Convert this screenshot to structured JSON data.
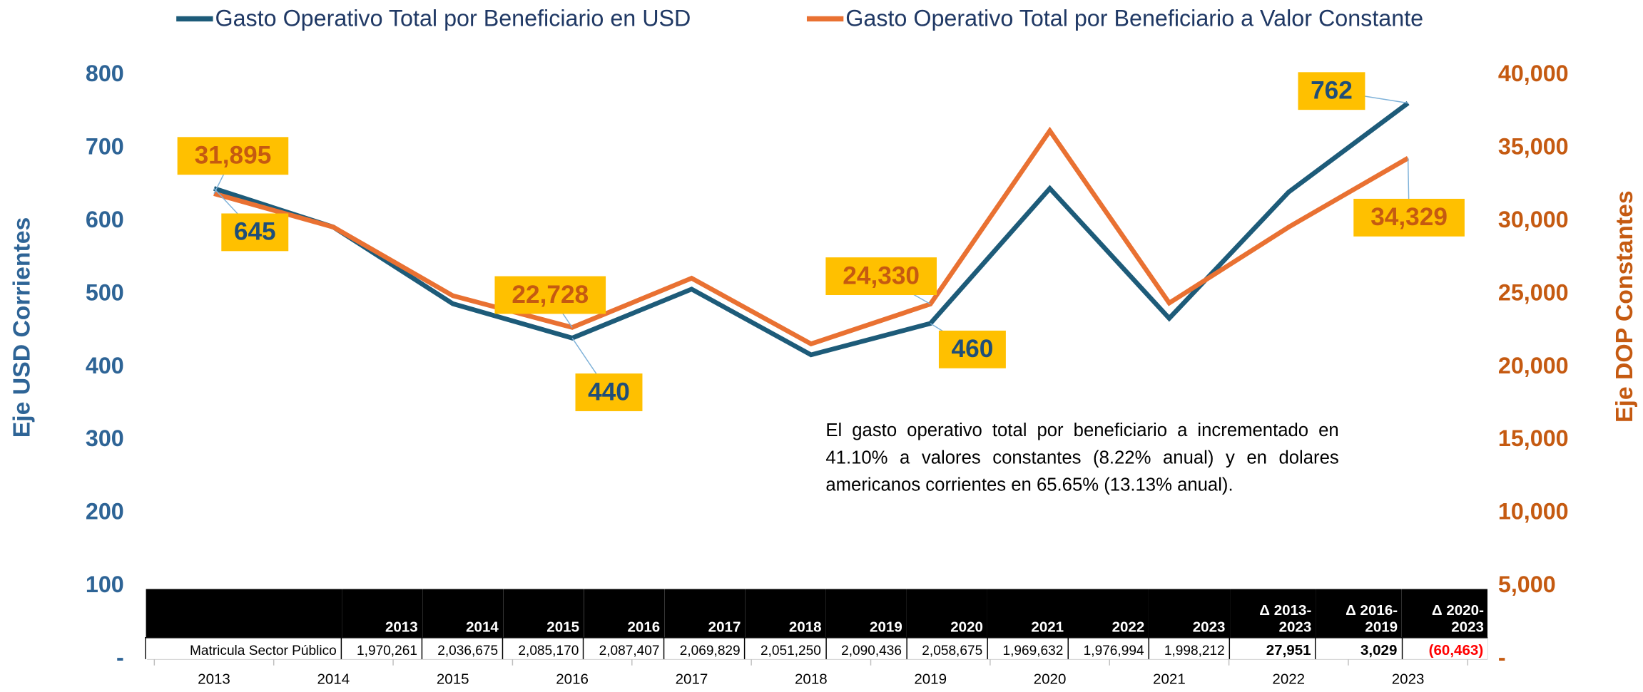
{
  "chart_data": {
    "type": "line",
    "categories": [
      "2013",
      "2014",
      "2015",
      "2016",
      "2017",
      "2018",
      "2019",
      "2020",
      "2021",
      "2022",
      "2023"
    ],
    "series": [
      {
        "name": "Gasto Operativo Total por Beneficiario en USD",
        "color": "#1d5b79",
        "axis": "y",
        "values": [
          645,
          592,
          487,
          440,
          507,
          417,
          460,
          645,
          467,
          640,
          762
        ],
        "value_labels": [
          "645",
          null,
          null,
          "440",
          null,
          null,
          "460",
          null,
          null,
          null,
          "762"
        ]
      },
      {
        "name": "Gasto Operativo Total por Beneficiario a Valor Constante",
        "color": "#e97132",
        "axis": "y2",
        "values": [
          31895,
          29600,
          24900,
          22728,
          26100,
          21600,
          24330,
          36200,
          24400,
          29600,
          34329
        ],
        "value_labels": [
          "31,895",
          null,
          null,
          "22,728",
          null,
          null,
          "24,330",
          null,
          null,
          null,
          "34,329"
        ]
      }
    ],
    "ylabel": "Eje USD Corrientes",
    "y2label": "Eje DOP Constantes",
    "ylim": [
      0,
      800
    ],
    "yticks": [
      {
        "value": 0,
        "label": "-"
      },
      100,
      200,
      300,
      400,
      500,
      600,
      700,
      800
    ],
    "y2lim": [
      0,
      40000
    ],
    "y2ticks": [
      {
        "value": 0,
        "label": "-"
      },
      {
        "value": 5000,
        "label": "5,000"
      },
      {
        "value": 10000,
        "label": "10,000"
      },
      {
        "value": 15000,
        "label": "15,000"
      },
      {
        "value": 20000,
        "label": "20,000"
      },
      {
        "value": 25000,
        "label": "25,000"
      },
      {
        "value": 30000,
        "label": "30,000"
      },
      {
        "value": 35000,
        "label": "35,000"
      },
      {
        "value": 40000,
        "label": "40,000"
      }
    ],
    "annotation": "El gasto  operativo total por beneficiario a incrementado en  41.10% a valores constantes (8.22% anual) y en dolares americanos corrientes en  65.65% (13.13% anual).",
    "legend": "top",
    "label_color": "#ffc000"
  },
  "table": {
    "header": [
      "2013",
      "2014",
      "2015",
      "2016",
      "2017",
      "2018",
      "2019",
      "2020",
      "2021",
      "2022",
      "2023",
      "Δ 2013-2023",
      "Δ 2016-2019",
      "Δ 2020-2023"
    ],
    "row_label": "Matricula Sector Público",
    "cells": [
      "1,970,261",
      "2,036,675",
      "2,085,170",
      "2,087,407",
      "2,069,829",
      "2,051,250",
      "2,090,436",
      "2,058,675",
      "1,969,632",
      "1,976,994",
      "1,998,212",
      "27,951",
      "3,029",
      "(60,463)"
    ]
  }
}
